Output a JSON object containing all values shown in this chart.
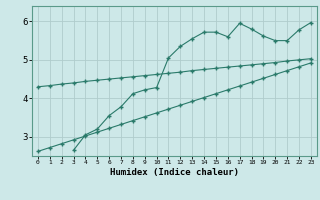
{
  "bg_color": "#cde8e8",
  "grid_color": "#b0cccc",
  "line_color": "#2a7a6a",
  "xlabel": "Humidex (Indice chaleur)",
  "xlim": [
    -0.5,
    23.5
  ],
  "ylim": [
    2.5,
    6.4
  ],
  "yticks": [
    3,
    4,
    5,
    6
  ],
  "xticks": [
    0,
    1,
    2,
    3,
    4,
    5,
    6,
    7,
    8,
    9,
    10,
    11,
    12,
    13,
    14,
    15,
    16,
    17,
    18,
    19,
    20,
    21,
    22,
    23
  ],
  "line1_x": [
    0,
    1,
    2,
    3,
    4,
    5,
    6,
    7,
    8,
    9,
    10,
    11,
    12,
    13,
    14,
    15,
    16,
    17,
    18,
    19,
    20,
    21,
    22,
    23
  ],
  "line1_y": [
    4.3,
    4.33,
    4.37,
    4.4,
    4.44,
    4.47,
    4.5,
    4.53,
    4.56,
    4.59,
    4.62,
    4.65,
    4.68,
    4.72,
    4.75,
    4.78,
    4.81,
    4.84,
    4.87,
    4.9,
    4.93,
    4.97,
    5.0,
    5.03
  ],
  "line2_x": [
    3,
    4,
    5,
    6,
    7,
    8,
    9,
    10,
    11,
    12,
    13,
    14,
    15,
    16,
    17,
    18,
    19,
    20,
    21,
    22,
    23
  ],
  "line2_y": [
    2.65,
    3.05,
    3.2,
    3.55,
    3.78,
    4.12,
    4.22,
    4.28,
    5.05,
    5.35,
    5.55,
    5.72,
    5.72,
    5.6,
    5.95,
    5.8,
    5.62,
    5.5,
    5.5,
    5.78,
    5.97
  ],
  "line3_x": [
    0,
    1,
    2,
    3,
    4,
    5,
    6,
    7,
    8,
    9,
    10,
    11,
    12,
    13,
    14,
    15,
    16,
    17,
    18,
    19,
    20,
    21,
    22,
    23
  ],
  "line3_y": [
    2.62,
    2.72,
    2.82,
    2.92,
    3.02,
    3.12,
    3.22,
    3.32,
    3.42,
    3.52,
    3.62,
    3.72,
    3.82,
    3.92,
    4.02,
    4.12,
    4.22,
    4.32,
    4.42,
    4.52,
    4.62,
    4.72,
    4.82,
    4.92
  ]
}
